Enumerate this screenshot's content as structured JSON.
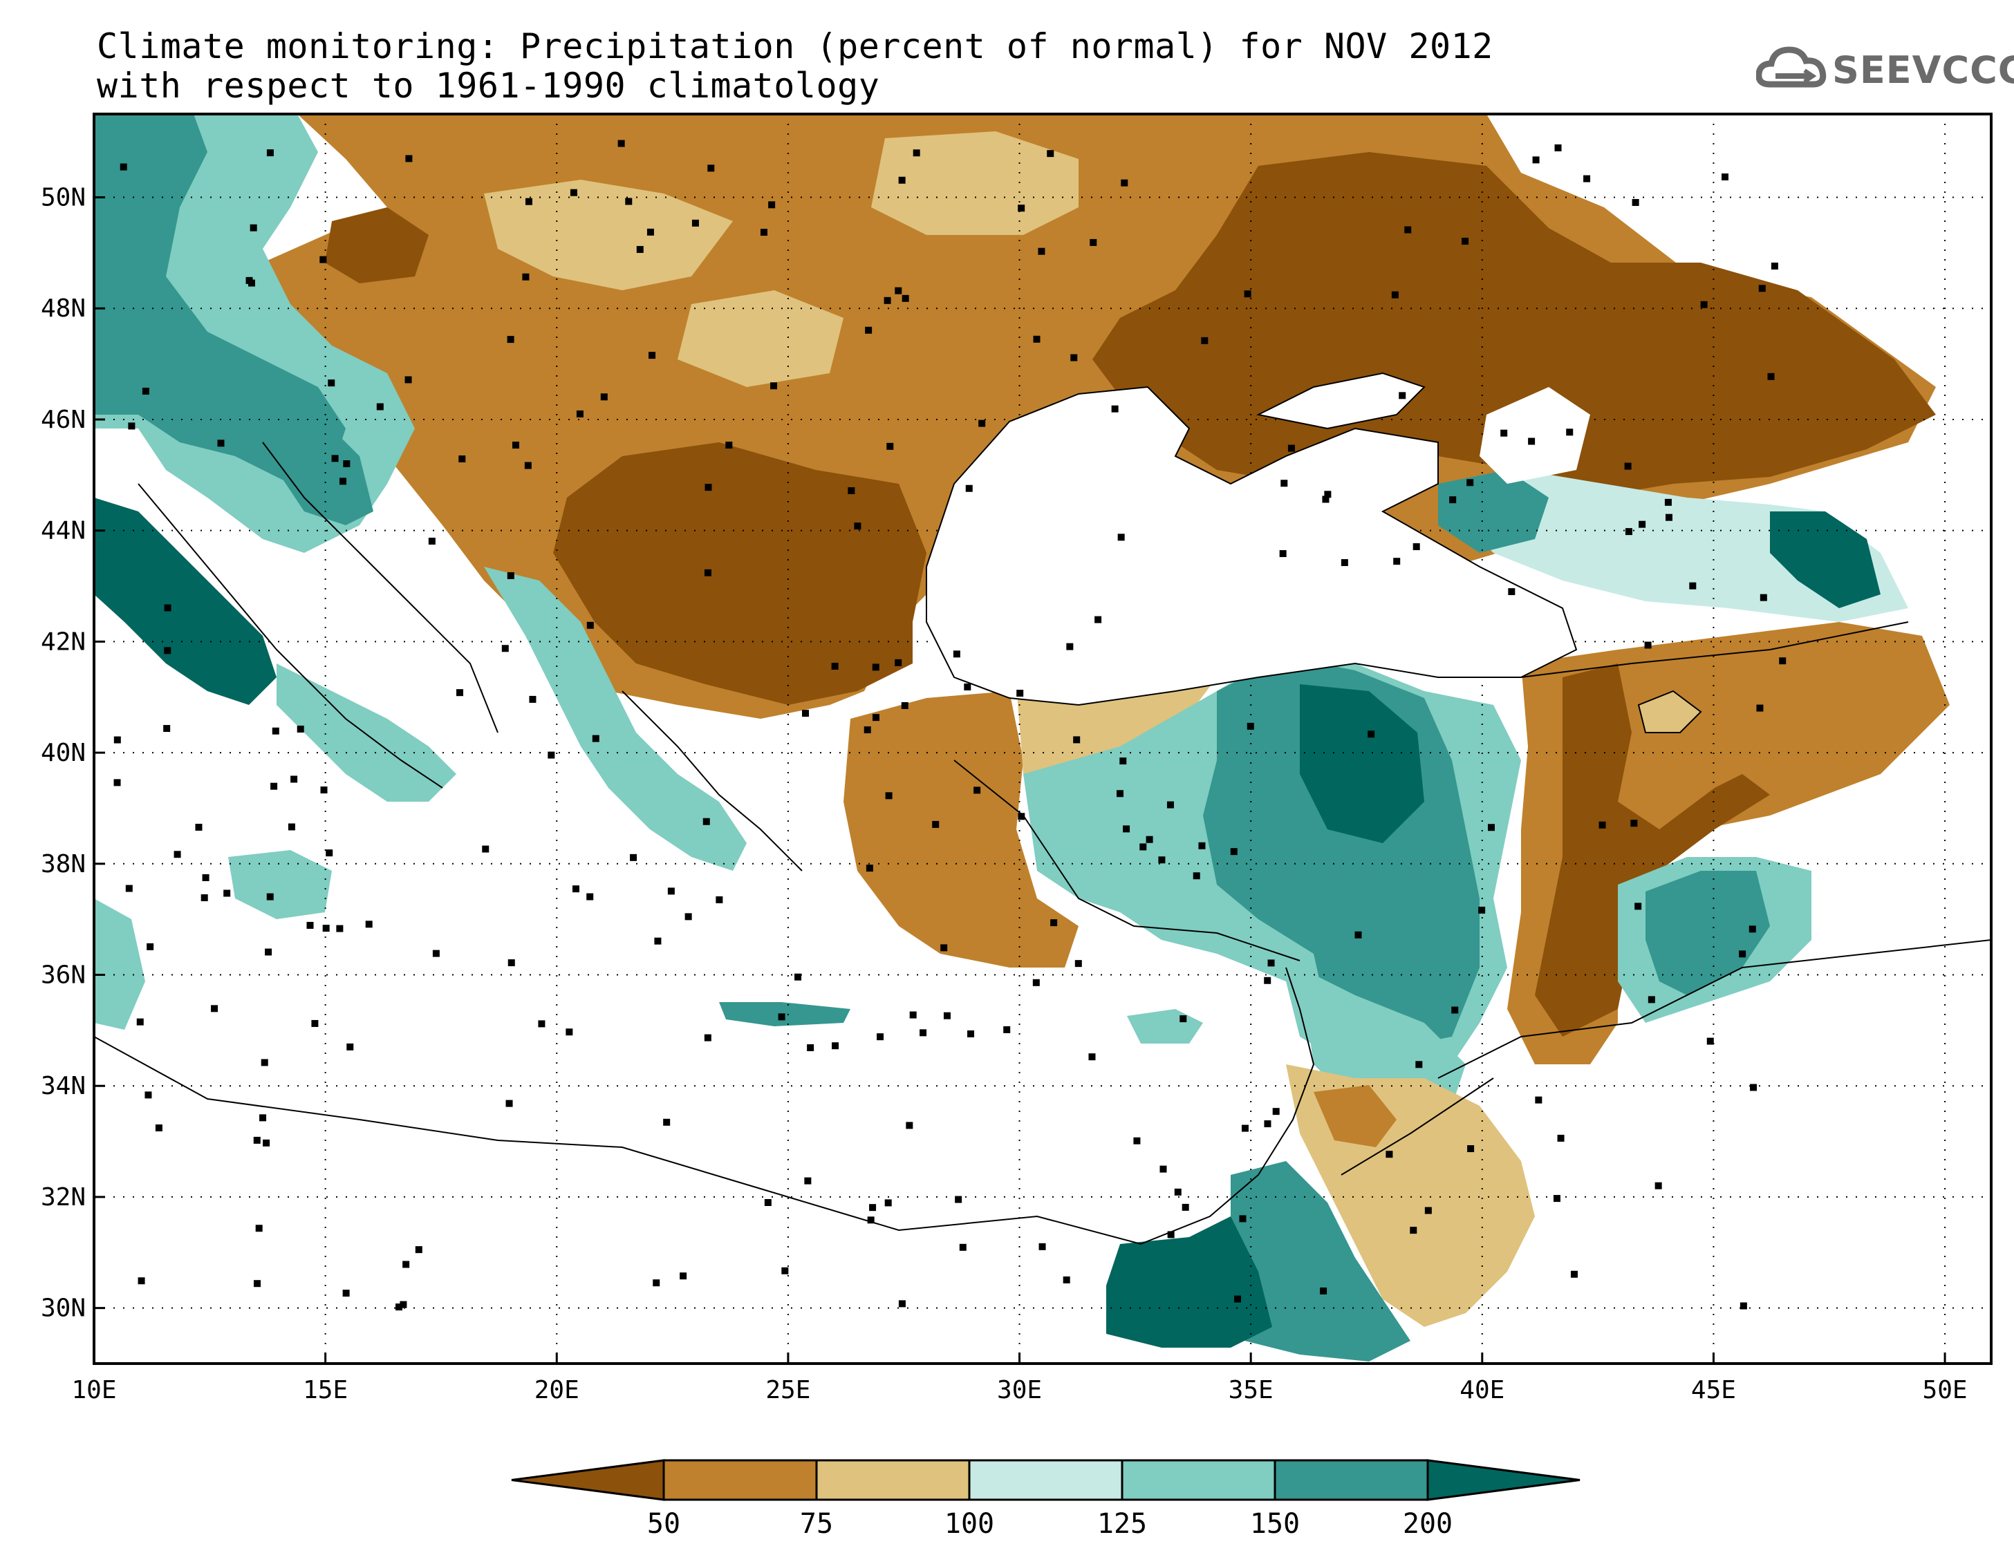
{
  "title": {
    "line1": "Climate monitoring: Precipitation (percent of normal) for NOV 2012",
    "line2": "with respect to 1961-1990 climatology"
  },
  "logo": {
    "text": "SEEVCCC",
    "icon": "cloud-icon"
  },
  "map": {
    "lon_range": [
      10,
      51
    ],
    "lat_range": [
      29,
      51.5
    ],
    "lon_ticks": [
      {
        "v": 10,
        "label": "10E"
      },
      {
        "v": 15,
        "label": "15E"
      },
      {
        "v": 20,
        "label": "20E"
      },
      {
        "v": 25,
        "label": "25E"
      },
      {
        "v": 30,
        "label": "30E"
      },
      {
        "v": 35,
        "label": "35E"
      },
      {
        "v": 40,
        "label": "40E"
      },
      {
        "v": 45,
        "label": "45E"
      },
      {
        "v": 50,
        "label": "50E"
      }
    ],
    "lat_ticks": [
      {
        "v": 30,
        "label": "30N"
      },
      {
        "v": 32,
        "label": "32N"
      },
      {
        "v": 34,
        "label": "34N"
      },
      {
        "v": 36,
        "label": "36N"
      },
      {
        "v": 38,
        "label": "38N"
      },
      {
        "v": 40,
        "label": "40N"
      },
      {
        "v": 42,
        "label": "42N"
      },
      {
        "v": 44,
        "label": "44N"
      },
      {
        "v": 46,
        "label": "46N"
      },
      {
        "v": 48,
        "label": "48N"
      },
      {
        "v": 50,
        "label": "50N"
      }
    ],
    "colors": {
      "lt50": "#8c510a",
      "50_75": "#bf812d",
      "75_100": "#dfc27d",
      "100_125": "#c7eae5",
      "125_150": "#80cdc1",
      "150_200": "#35978f",
      "gt200": "#01665e"
    }
  },
  "colorbar": {
    "labels": [
      "50",
      "75",
      "100",
      "125",
      "150",
      "200"
    ],
    "colors": [
      "#8c510a",
      "#bf812d",
      "#dfc27d",
      "#c7eae5",
      "#80cdc1",
      "#35978f",
      "#01665e"
    ]
  }
}
